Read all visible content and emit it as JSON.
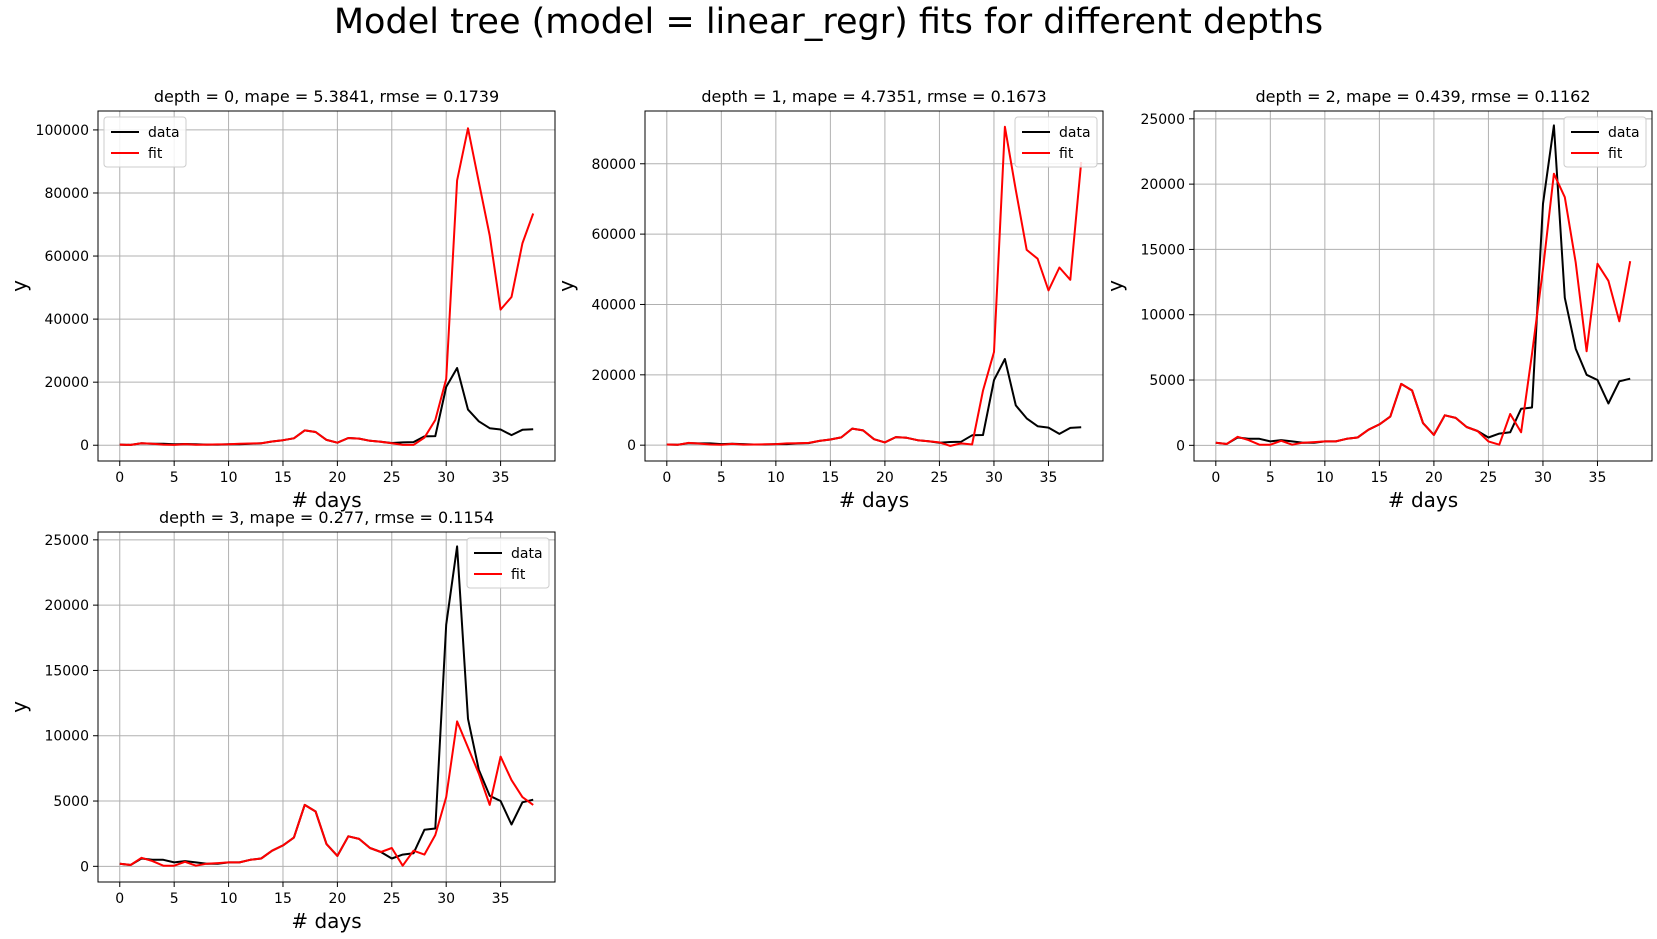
{
  "figure": {
    "suptitle": "Model tree (model = linear_regr) fits for different depths",
    "x_label": "# days",
    "y_label": "y",
    "legend": [
      "data",
      "fit"
    ],
    "colors": {
      "data": "#000000",
      "fit": "#ff0000",
      "grid": "#b0b0b0"
    }
  },
  "chart_data": [
    {
      "type": "line",
      "title": "depth = 0, mape = 5.3841, rmse = 0.1739",
      "xlabel": "# days",
      "ylabel": "y",
      "xlim": [
        -2,
        40
      ],
      "ylim": [
        -5000,
        106000
      ],
      "xticks": [
        0,
        5,
        10,
        15,
        20,
        25,
        30,
        35
      ],
      "yticks": [
        0,
        20000,
        40000,
        60000,
        80000,
        100000
      ],
      "grid": true,
      "legend": "top-left",
      "x": [
        0,
        1,
        2,
        3,
        4,
        5,
        6,
        7,
        8,
        9,
        10,
        11,
        12,
        13,
        14,
        15,
        16,
        17,
        18,
        19,
        20,
        21,
        22,
        23,
        24,
        25,
        26,
        27,
        28,
        29,
        30,
        31,
        32,
        33,
        34,
        35,
        36,
        37,
        38
      ],
      "series": [
        {
          "name": "data",
          "color": "#000000",
          "values": [
            200,
            100,
            600,
            500,
            500,
            300,
            400,
            300,
            200,
            200,
            300,
            300,
            500,
            600,
            1200,
            1600,
            2200,
            4700,
            4200,
            1700,
            800,
            2300,
            2100,
            1400,
            1100,
            700,
            900,
            1000,
            2800,
            2900,
            18500,
            24500,
            11300,
            7600,
            5400,
            5000,
            3200,
            4900,
            5100
          ]
        },
        {
          "name": "fit",
          "color": "#ff0000",
          "values": [
            200,
            100,
            650,
            450,
            200,
            100,
            350,
            150,
            200,
            250,
            300,
            500,
            550,
            650,
            1200,
            1600,
            2200,
            4700,
            4200,
            1700,
            800,
            2300,
            2100,
            1400,
            1100,
            600,
            100,
            100,
            2400,
            8000,
            21000,
            84000,
            100500,
            83500,
            66500,
            43000,
            47000,
            64000,
            73500
          ]
        }
      ]
    },
    {
      "type": "line",
      "title": "depth = 1, mape = 4.7351, rmse = 0.1673",
      "xlabel": "# days",
      "ylabel": "y",
      "xlim": [
        -2,
        40
      ],
      "ylim": [
        -4500,
        95000
      ],
      "xticks": [
        0,
        5,
        10,
        15,
        20,
        25,
        30,
        35
      ],
      "yticks": [
        0,
        20000,
        40000,
        60000,
        80000
      ],
      "grid": true,
      "legend": "top-right",
      "x": [
        0,
        1,
        2,
        3,
        4,
        5,
        6,
        7,
        8,
        9,
        10,
        11,
        12,
        13,
        14,
        15,
        16,
        17,
        18,
        19,
        20,
        21,
        22,
        23,
        24,
        25,
        26,
        27,
        28,
        29,
        30,
        31,
        32,
        33,
        34,
        35,
        36,
        37,
        38
      ],
      "series": [
        {
          "name": "data",
          "color": "#000000",
          "values": [
            200,
            100,
            600,
            500,
            500,
            300,
            400,
            300,
            200,
            200,
            300,
            300,
            500,
            600,
            1200,
            1600,
            2200,
            4700,
            4200,
            1700,
            800,
            2300,
            2100,
            1400,
            1100,
            700,
            900,
            1000,
            2800,
            2900,
            18500,
            24500,
            11300,
            7600,
            5400,
            5000,
            3200,
            4900,
            5100
          ]
        },
        {
          "name": "fit",
          "color": "#ff0000",
          "values": [
            200,
            100,
            650,
            450,
            200,
            100,
            350,
            150,
            200,
            250,
            300,
            500,
            550,
            650,
            1200,
            1600,
            2200,
            4700,
            4200,
            1700,
            800,
            2300,
            2100,
            1400,
            1100,
            800,
            -200,
            500,
            200,
            15500,
            26500,
            90500,
            72500,
            55500,
            53000,
            44000,
            50500,
            47000,
            80500
          ]
        }
      ]
    },
    {
      "type": "line",
      "title": "depth = 2, mape = 0.439, rmse = 0.1162",
      "xlabel": "# days",
      "ylabel": "y",
      "xlim": [
        -2,
        40
      ],
      "ylim": [
        -1200,
        25600
      ],
      "xticks": [
        0,
        5,
        10,
        15,
        20,
        25,
        30,
        35
      ],
      "yticks": [
        0,
        5000,
        10000,
        15000,
        20000,
        25000
      ],
      "grid": true,
      "legend": "top-right",
      "x": [
        0,
        1,
        2,
        3,
        4,
        5,
        6,
        7,
        8,
        9,
        10,
        11,
        12,
        13,
        14,
        15,
        16,
        17,
        18,
        19,
        20,
        21,
        22,
        23,
        24,
        25,
        26,
        27,
        28,
        29,
        30,
        31,
        32,
        33,
        34,
        35,
        36,
        37,
        38
      ],
      "series": [
        {
          "name": "data",
          "color": "#000000",
          "values": [
            200,
            100,
            600,
            500,
            500,
            300,
            400,
            300,
            200,
            200,
            300,
            300,
            500,
            600,
            1200,
            1600,
            2200,
            4700,
            4200,
            1700,
            800,
            2300,
            2100,
            1400,
            1100,
            600,
            900,
            1000,
            2800,
            2900,
            18500,
            24500,
            11300,
            7400,
            5400,
            5000,
            3200,
            4900,
            5100
          ]
        },
        {
          "name": "fit",
          "color": "#ff0000",
          "values": [
            200,
            100,
            650,
            400,
            50,
            50,
            350,
            50,
            200,
            250,
            300,
            300,
            500,
            600,
            1200,
            1600,
            2200,
            4700,
            4200,
            1700,
            800,
            2300,
            2100,
            1400,
            1100,
            300,
            50,
            2400,
            1000,
            7000,
            13500,
            20800,
            19000,
            14000,
            7200,
            13900,
            12600,
            9500,
            14100
          ]
        }
      ]
    },
    {
      "type": "line",
      "title": "depth = 3, mape = 0.277, rmse = 0.1154",
      "xlabel": "# days",
      "ylabel": "y",
      "xlim": [
        -2,
        40
      ],
      "ylim": [
        -1200,
        25600
      ],
      "xticks": [
        0,
        5,
        10,
        15,
        20,
        25,
        30,
        35
      ],
      "yticks": [
        0,
        5000,
        10000,
        15000,
        20000,
        25000
      ],
      "grid": true,
      "legend": "top-right",
      "x": [
        0,
        1,
        2,
        3,
        4,
        5,
        6,
        7,
        8,
        9,
        10,
        11,
        12,
        13,
        14,
        15,
        16,
        17,
        18,
        19,
        20,
        21,
        22,
        23,
        24,
        25,
        26,
        27,
        28,
        29,
        30,
        31,
        32,
        33,
        34,
        35,
        36,
        37,
        38
      ],
      "series": [
        {
          "name": "data",
          "color": "#000000",
          "values": [
            200,
            100,
            600,
            500,
            500,
            300,
            400,
            300,
            200,
            200,
            300,
            300,
            500,
            600,
            1200,
            1600,
            2200,
            4700,
            4200,
            1700,
            800,
            2300,
            2100,
            1400,
            1100,
            600,
            900,
            1000,
            2800,
            2900,
            18500,
            24500,
            11300,
            7400,
            5400,
            5000,
            3200,
            4900,
            5100
          ]
        },
        {
          "name": "fit",
          "color": "#ff0000",
          "values": [
            200,
            100,
            650,
            400,
            50,
            50,
            350,
            50,
            200,
            250,
            300,
            300,
            500,
            600,
            1200,
            1600,
            2200,
            4700,
            4200,
            1700,
            800,
            2300,
            2100,
            1400,
            1100,
            1400,
            50,
            1200,
            900,
            2400,
            5300,
            11100,
            9100,
            7100,
            4700,
            8400,
            6600,
            5300,
            4700
          ]
        }
      ]
    }
  ]
}
